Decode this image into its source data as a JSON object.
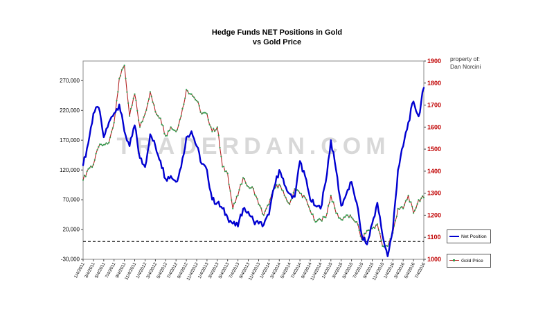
{
  "header": {
    "title_line1": "Hedge Funds NET Positions in Gold",
    "title_line2": "vs Gold Price",
    "property_label": "property of:",
    "property_name": "Dan Norcini"
  },
  "watermark": "TRADERDAN.COM",
  "legend": [
    {
      "label": "Net Position",
      "color": "#0000d0"
    },
    {
      "label": "Gold Price",
      "color": "#b22222"
    }
  ],
  "chart_data": {
    "type": "line",
    "title": "Hedge Funds NET Positions in Gold vs Gold Price",
    "grid": false,
    "legend_position": "right-bottom",
    "x_monthly": [
      "2011-01",
      "2011-02",
      "2011-03",
      "2011-04",
      "2011-05",
      "2011-06",
      "2011-07",
      "2011-08",
      "2011-09",
      "2011-10",
      "2011-11",
      "2011-12",
      "2012-01",
      "2012-02",
      "2012-03",
      "2012-04",
      "2012-05",
      "2012-06",
      "2012-07",
      "2012-08",
      "2012-09",
      "2012-10",
      "2012-11",
      "2012-12",
      "2013-01",
      "2013-02",
      "2013-03",
      "2013-04",
      "2013-05",
      "2013-06",
      "2013-07",
      "2013-08",
      "2013-09",
      "2013-10",
      "2013-11",
      "2013-12",
      "2014-01",
      "2014-02",
      "2014-03",
      "2014-04",
      "2014-05",
      "2014-06",
      "2014-07",
      "2014-08",
      "2014-09",
      "2014-10",
      "2014-11",
      "2014-12",
      "2015-01",
      "2015-02",
      "2015-03",
      "2015-04",
      "2015-05",
      "2015-06",
      "2015-07",
      "2015-08",
      "2015-09",
      "2015-10",
      "2015-11",
      "2015-12",
      "2016-01",
      "2016-02",
      "2016-03",
      "2016-04",
      "2016-05",
      "2016-06",
      "2016-07"
    ],
    "x_tick_labels": [
      "1/4/2011",
      "3/4/2011",
      "5/4/2011",
      "7/4/2011",
      "9/4/2011",
      "11/4/2011",
      "1/4/2012",
      "3/4/2012",
      "5/4/2012",
      "7/4/2012",
      "9/4/2012",
      "11/4/2012",
      "1/4/2013",
      "3/4/2013",
      "5/4/2013",
      "7/4/2013",
      "9/4/2013",
      "11/4/2013",
      "1/4/2014",
      "3/4/2014",
      "5/4/2014",
      "7/4/2014",
      "9/4/2014",
      "11/4/2014",
      "1/4/2015",
      "3/4/2015",
      "5/4/2015",
      "7/4/2015",
      "9/4/2015",
      "11/4/2015",
      "1/4/2016",
      "3/4/2016",
      "5/4/2016",
      "7/4/2016"
    ],
    "left_axis": {
      "min": -30000,
      "max": 303000,
      "ticks": [
        -30000,
        20000,
        70000,
        120000,
        170000,
        220000,
        270000
      ],
      "tick_labels": [
        "-30,000",
        "20,000",
        "70,000",
        "120,000",
        "170,000",
        "220,000",
        "270,000"
      ],
      "color": "#000000"
    },
    "right_axis": {
      "min": 1000,
      "max": 1900,
      "ticks": [
        1000,
        1100,
        1200,
        1300,
        1400,
        1500,
        1600,
        1700,
        1800,
        1900
      ],
      "tick_labels": [
        "1000",
        "1100",
        "1200",
        "1300",
        "1400",
        "1500",
        "1600",
        "1700",
        "1800",
        "1900"
      ],
      "color": "#c00000"
    },
    "zero_line_value": 0,
    "series": [
      {
        "name": "Net Position",
        "axis": "left",
        "color": "#0000d0",
        "values": [
          128000,
          165000,
          215000,
          225000,
          175000,
          200000,
          215000,
          230000,
          185000,
          160000,
          195000,
          140000,
          125000,
          180000,
          160000,
          135000,
          105000,
          110000,
          100000,
          125000,
          175000,
          185000,
          160000,
          130000,
          120000,
          70000,
          65000,
          55000,
          40000,
          30000,
          25000,
          55000,
          50000,
          35000,
          30000,
          28000,
          45000,
          90000,
          120000,
          95000,
          80000,
          75000,
          135000,
          110000,
          70000,
          60000,
          55000,
          100000,
          170000,
          120000,
          60000,
          80000,
          100000,
          65000,
          10000,
          -5000,
          30000,
          65000,
          10000,
          -25000,
          20000,
          120000,
          160000,
          200000,
          235000,
          210000,
          258000
        ]
      },
      {
        "name": "Gold Price",
        "axis": "right",
        "color": "#b22222",
        "marker_color": "#2e9e4f",
        "values": [
          1360,
          1410,
          1430,
          1510,
          1520,
          1530,
          1620,
          1820,
          1880,
          1650,
          1750,
          1600,
          1660,
          1760,
          1670,
          1640,
          1560,
          1600,
          1580,
          1650,
          1770,
          1750,
          1720,
          1660,
          1660,
          1580,
          1600,
          1420,
          1390,
          1230,
          1290,
          1370,
          1330,
          1320,
          1250,
          1200,
          1250,
          1320,
          1340,
          1290,
          1250,
          1320,
          1300,
          1280,
          1220,
          1170,
          1180,
          1190,
          1290,
          1210,
          1180,
          1200,
          1190,
          1170,
          1090,
          1130,
          1140,
          1160,
          1060,
          1060,
          1120,
          1230,
          1230,
          1290,
          1210,
          1270,
          1280
        ]
      }
    ]
  }
}
